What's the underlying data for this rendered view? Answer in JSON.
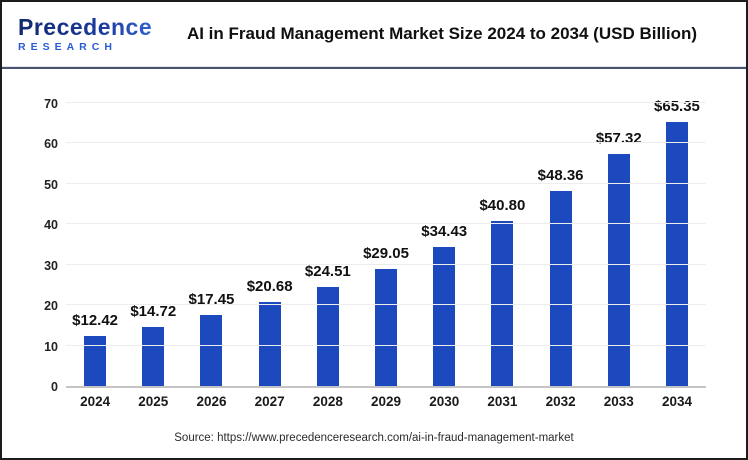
{
  "header": {
    "logo_line1": "Precedence",
    "logo_line2": "RESEARCH",
    "title": "AI in Fraud Management Market Size 2024 to 2034 (USD Billion)"
  },
  "chart_data": {
    "type": "bar",
    "title": "AI in Fraud Management Market Size 2024 to 2034 (USD Billion)",
    "categories": [
      "2024",
      "2025",
      "2026",
      "2027",
      "2028",
      "2029",
      "2030",
      "2031",
      "2032",
      "2033",
      "2034"
    ],
    "values": [
      12.42,
      14.72,
      17.45,
      20.68,
      24.51,
      29.05,
      34.43,
      40.8,
      48.36,
      57.32,
      65.35
    ],
    "value_labels": [
      "$12.42",
      "$14.72",
      "$17.45",
      "$20.68",
      "$24.51",
      "$29.05",
      "$34.43",
      "$40.80",
      "$48.36",
      "$57.32",
      "$65.35"
    ],
    "xlabel": "",
    "ylabel": "",
    "ylim": [
      0,
      70
    ],
    "ytick_step": 10,
    "yticks": [
      0,
      10,
      20,
      30,
      40,
      50,
      60,
      70
    ],
    "grid": true,
    "legend": "none",
    "bar_color": "#1d49be",
    "value_prefix": "$"
  },
  "footer": {
    "source": "Source: https://www.precedenceresearch.com/ai-in-fraud-management-market"
  }
}
